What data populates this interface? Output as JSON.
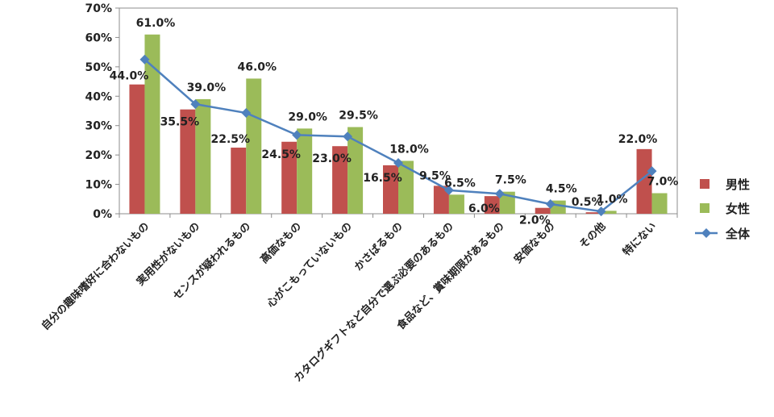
{
  "chart_data": {
    "type": "bar",
    "categories": [
      "自分の趣味嗜好に合わないもの",
      "実用性がないもの",
      "センスが疑われるもの",
      "高価なもの",
      "心がこもっていないもの",
      "かさばるもの",
      "カタログギフトなど自分で選ぶ必要のあるもの",
      "食品など、賞味期限があるもの",
      "安価なもの",
      "その他",
      "特にない"
    ],
    "series": [
      {
        "name": "男性",
        "type": "bar",
        "color": "#C0504D",
        "values": [
          44.0,
          35.5,
          22.5,
          24.5,
          23.0,
          16.5,
          9.5,
          6.0,
          2.0,
          0.5,
          22.0
        ],
        "labels": [
          "44.0%",
          "35.5%",
          "22.5%",
          "24.5%",
          "23.0%",
          "16.5%",
          "9.5%",
          "6.0%",
          "2.0%",
          "0.5%",
          "22.0%"
        ]
      },
      {
        "name": "女性",
        "type": "bar",
        "color": "#9BBB59",
        "values": [
          61.0,
          39.0,
          46.0,
          29.0,
          29.5,
          18.0,
          6.5,
          7.5,
          4.5,
          1.0,
          7.0
        ],
        "labels": [
          "61.0%",
          "39.0%",
          "46.0%",
          "29.0%",
          "29.5%",
          "18.0%",
          "6.5%",
          "7.5%",
          "4.5%",
          "1.0%",
          "7.0%"
        ]
      },
      {
        "name": "全体",
        "type": "line",
        "color": "#4F81BD",
        "values": [
          52.5,
          37.3,
          34.3,
          26.8,
          26.3,
          17.3,
          8.0,
          6.8,
          3.3,
          0.8,
          14.5
        ]
      }
    ],
    "y_ticks": [
      "0%",
      "10%",
      "20%",
      "30%",
      "40%",
      "50%",
      "60%",
      "70%"
    ],
    "ylim": [
      0,
      70
    ],
    "grid": false,
    "legend_position": "right"
  }
}
